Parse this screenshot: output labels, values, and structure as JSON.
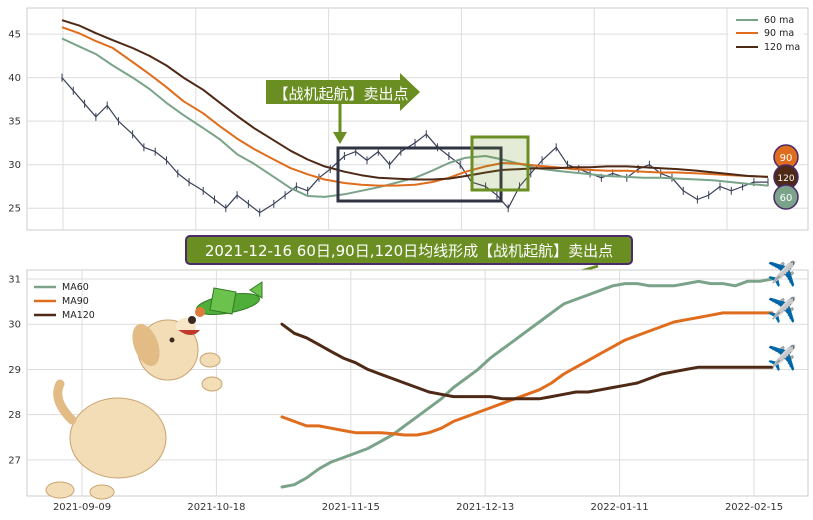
{
  "colors": {
    "ma60": "#7aa389",
    "ma90": "#e06d1d",
    "ma120": "#4e2916",
    "price": "#3a4158",
    "callout_green": "#6b8e23",
    "highlight_box_dark": "#2f3342",
    "highlight_box_green": "#6b8e23",
    "headline_bg": "#6b8e23",
    "headline_border": "#4a2a6a"
  },
  "top_chart": {
    "legend": [
      "60 ma",
      "90 ma",
      "120 ma"
    ],
    "callout_text": "【战机起航】卖出点",
    "end_badges": [
      "90",
      "120",
      "60"
    ]
  },
  "headline": "2021-12-16 60日,90日,120日均线形成【战机起航】卖出点",
  "bottom_chart": {
    "legend": [
      "MA60",
      "MA90",
      "MA120"
    ]
  },
  "decor": {
    "dog_icon": "dog-icon",
    "plane_icon": "plane-icon",
    "airplane_emoji": "✈️"
  },
  "chart_data": [
    {
      "type": "line",
      "title": "",
      "xlabel": "",
      "ylabel": "",
      "ylim": [
        22.5,
        48
      ],
      "yticks": [
        25,
        30,
        35,
        40,
        45
      ],
      "legend_position": "top-right",
      "grid": true,
      "series": [
        {
          "name": "60 ma",
          "x": [
            0,
            6,
            12,
            18,
            25,
            31,
            37,
            43,
            50,
            56,
            62,
            68,
            75,
            81,
            87,
            93,
            100,
            106,
            112,
            118,
            125,
            131,
            137,
            143,
            150,
            156,
            162,
            168,
            175,
            181,
            187,
            193,
            200,
            206,
            212,
            218,
            225,
            231,
            237,
            243,
            250
          ],
          "values": [
            44.5,
            43.6,
            42.7,
            41.4,
            40.0,
            38.7,
            37.1,
            35.7,
            34.2,
            32.9,
            31.2,
            30.1,
            28.6,
            27.3,
            26.4,
            26.3,
            26.6,
            27.0,
            27.4,
            27.9,
            28.5,
            29.3,
            30.2,
            30.8,
            31.0,
            30.6,
            30.1,
            29.6,
            29.3,
            29.1,
            28.9,
            28.7,
            28.6,
            28.5,
            28.5,
            28.4,
            28.3,
            28.2,
            28.0,
            27.8,
            27.6
          ]
        },
        {
          "name": "90 ma",
          "x": [
            0,
            6,
            12,
            18,
            25,
            31,
            37,
            43,
            50,
            56,
            62,
            68,
            75,
            81,
            87,
            93,
            100,
            106,
            112,
            118,
            125,
            131,
            137,
            143,
            150,
            156,
            162,
            168,
            175,
            181,
            187,
            193,
            200,
            206,
            212,
            218,
            225,
            231,
            237,
            243,
            250
          ],
          "values": [
            45.8,
            45.1,
            44.2,
            43.4,
            41.8,
            40.4,
            38.9,
            37.3,
            35.9,
            34.4,
            33.0,
            31.8,
            30.6,
            29.6,
            28.9,
            28.3,
            27.9,
            27.7,
            27.6,
            27.6,
            27.7,
            28.0,
            28.5,
            29.2,
            29.8,
            30.2,
            30.1,
            29.9,
            29.7,
            29.5,
            29.4,
            29.3,
            29.3,
            29.2,
            29.1,
            29.1,
            29.0,
            28.9,
            28.8,
            28.7,
            28.6
          ]
        },
        {
          "name": "120 ma",
          "x": [
            0,
            6,
            12,
            18,
            25,
            31,
            37,
            43,
            50,
            56,
            62,
            68,
            75,
            81,
            87,
            93,
            100,
            106,
            112,
            118,
            125,
            131,
            137,
            143,
            150,
            156,
            162,
            168,
            175,
            181,
            187,
            193,
            200,
            206,
            212,
            218,
            225,
            231,
            237,
            243,
            250
          ],
          "values": [
            46.6,
            46.0,
            45.1,
            44.3,
            43.4,
            42.5,
            41.4,
            40.0,
            38.6,
            37.1,
            35.6,
            34.2,
            32.8,
            31.6,
            30.6,
            29.8,
            29.2,
            28.8,
            28.5,
            28.4,
            28.3,
            28.3,
            28.4,
            28.7,
            29.1,
            29.4,
            29.5,
            29.6,
            29.6,
            29.7,
            29.7,
            29.8,
            29.8,
            29.7,
            29.6,
            29.5,
            29.3,
            29.1,
            28.9,
            28.7,
            28.6
          ]
        },
        {
          "name": "price",
          "x": [
            0,
            4,
            8,
            12,
            16,
            20,
            25,
            29,
            33,
            37,
            41,
            45,
            50,
            54,
            58,
            62,
            66,
            70,
            75,
            79,
            83,
            87,
            91,
            95,
            100,
            104,
            108,
            112,
            116,
            120,
            125,
            129,
            133,
            137,
            141,
            145,
            150,
            154,
            158,
            162,
            166,
            170,
            175,
            179,
            183,
            187,
            191,
            195,
            200,
            204,
            208,
            212,
            216,
            220,
            225,
            229,
            233,
            237,
            241,
            245,
            250
          ],
          "values": [
            40.0,
            38.5,
            37.0,
            35.5,
            36.8,
            35.0,
            33.5,
            32.0,
            31.5,
            30.5,
            29.0,
            28.0,
            27.0,
            26.0,
            25.0,
            26.5,
            25.5,
            24.5,
            25.5,
            26.5,
            27.5,
            27.0,
            28.5,
            29.5,
            31.0,
            31.5,
            30.5,
            31.5,
            30.0,
            31.5,
            32.5,
            33.5,
            32.0,
            31.0,
            30.0,
            28.0,
            27.5,
            26.5,
            25.0,
            27.5,
            29.0,
            30.5,
            32.0,
            30.0,
            29.5,
            29.0,
            28.5,
            29.0,
            28.5,
            29.5,
            30.0,
            29.0,
            28.5,
            27.0,
            26.0,
            26.5,
            27.5,
            27.0,
            27.5,
            28.0,
            28.0
          ]
        }
      ]
    },
    {
      "type": "line",
      "title": "",
      "xlabel": "",
      "ylabel": "",
      "ylim": [
        26.2,
        31.2
      ],
      "yticks": [
        27,
        28,
        29,
        30,
        31
      ],
      "x_ticks": [
        "2021-09-09",
        "2021-10-18",
        "2021-11-15",
        "2021-12-13",
        "2022-01-11",
        "2022-02-15"
      ],
      "legend_position": "top-left",
      "grid": true,
      "series": [
        {
          "name": "MA60",
          "x": [
            0,
            3,
            6,
            9,
            12,
            15,
            18,
            21,
            24,
            27,
            30,
            33,
            36,
            39,
            42,
            45,
            48,
            51,
            54,
            57,
            60,
            63,
            66,
            69,
            72,
            75,
            78,
            81,
            84,
            87,
            90,
            93,
            96,
            99,
            102,
            105,
            108,
            111,
            114,
            117,
            120
          ],
          "values": [
            26.4,
            26.45,
            26.6,
            26.8,
            26.95,
            27.05,
            27.15,
            27.25,
            27.4,
            27.55,
            27.75,
            27.95,
            28.15,
            28.35,
            28.6,
            28.8,
            29.0,
            29.25,
            29.45,
            29.65,
            29.85,
            30.05,
            30.25,
            30.45,
            30.55,
            30.65,
            30.75,
            30.85,
            30.9,
            30.9,
            30.85,
            30.85,
            30.85,
            30.9,
            30.95,
            30.9,
            30.9,
            30.85,
            30.95,
            30.95,
            31.0
          ]
        },
        {
          "name": "MA90",
          "x": [
            0,
            3,
            6,
            9,
            12,
            15,
            18,
            21,
            24,
            27,
            30,
            33,
            36,
            39,
            42,
            45,
            48,
            51,
            54,
            57,
            60,
            63,
            66,
            69,
            72,
            75,
            78,
            81,
            84,
            87,
            90,
            93,
            96,
            99,
            102,
            105,
            108,
            111,
            114,
            117,
            120
          ],
          "values": [
            27.95,
            27.85,
            27.75,
            27.75,
            27.7,
            27.65,
            27.6,
            27.6,
            27.6,
            27.58,
            27.55,
            27.55,
            27.6,
            27.7,
            27.85,
            27.95,
            28.05,
            28.15,
            28.25,
            28.35,
            28.45,
            28.55,
            28.7,
            28.9,
            29.05,
            29.2,
            29.35,
            29.5,
            29.65,
            29.75,
            29.85,
            29.95,
            30.05,
            30.1,
            30.15,
            30.2,
            30.25,
            30.25,
            30.25,
            30.25,
            30.25
          ]
        },
        {
          "name": "MA120",
          "x": [
            0,
            3,
            6,
            9,
            12,
            15,
            18,
            21,
            24,
            27,
            30,
            33,
            36,
            39,
            42,
            45,
            48,
            51,
            54,
            57,
            60,
            63,
            66,
            69,
            72,
            75,
            78,
            81,
            84,
            87,
            90,
            93,
            96,
            99,
            102,
            105,
            108,
            111,
            114,
            117,
            120
          ],
          "values": [
            30.0,
            29.8,
            29.7,
            29.55,
            29.4,
            29.25,
            29.15,
            29.0,
            28.9,
            28.8,
            28.7,
            28.6,
            28.5,
            28.45,
            28.4,
            28.4,
            28.4,
            28.4,
            28.35,
            28.35,
            28.35,
            28.35,
            28.4,
            28.45,
            28.5,
            28.5,
            28.55,
            28.6,
            28.65,
            28.7,
            28.8,
            28.9,
            28.95,
            29.0,
            29.05,
            29.05,
            29.05,
            29.05,
            29.05,
            29.05,
            29.05
          ]
        }
      ]
    }
  ]
}
